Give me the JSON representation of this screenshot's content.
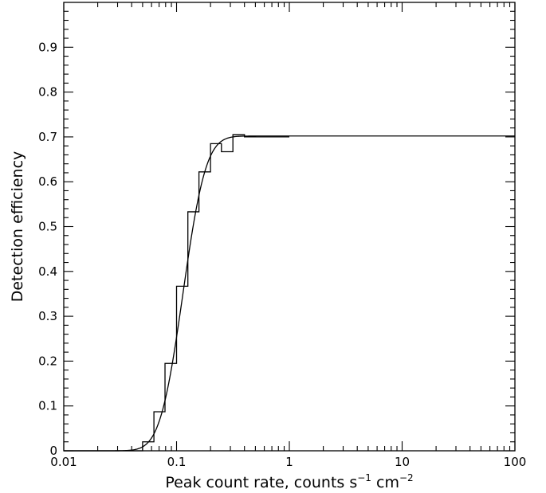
{
  "chart_data": {
    "type": "line",
    "title": "",
    "xlabel": "Peak count rate, counts s",
    "xlabel_sup1": "−1",
    "xlabel_mid": " cm",
    "xlabel_sup2": "−2",
    "ylabel": "Detection efficiency",
    "xscale": "log",
    "xlim": [
      0.01,
      100
    ],
    "ylim": [
      0,
      1
    ],
    "xticks": [
      {
        "value": 0.01,
        "label": "0.01"
      },
      {
        "value": 0.1,
        "label": "0.1"
      },
      {
        "value": 1,
        "label": "1"
      },
      {
        "value": 10,
        "label": "10"
      },
      {
        "value": 100,
        "label": "100"
      }
    ],
    "yticks": [
      {
        "value": 0,
        "label": "0"
      },
      {
        "value": 0.1,
        "label": "0.1"
      },
      {
        "value": 0.2,
        "label": "0.2"
      },
      {
        "value": 0.3,
        "label": "0.3"
      },
      {
        "value": 0.4,
        "label": "0.4"
      },
      {
        "value": 0.5,
        "label": "0.5"
      },
      {
        "value": 0.6,
        "label": "0.6"
      },
      {
        "value": 0.7,
        "label": "0.7"
      },
      {
        "value": 0.8,
        "label": "0.8"
      },
      {
        "value": 0.9,
        "label": "0.9"
      }
    ],
    "grid": false,
    "legend": "none",
    "series": [
      {
        "kind": "step",
        "bins": [
          {
            "x0": 0.01,
            "x1": 0.05,
            "y": 0
          },
          {
            "x0": 0.05,
            "x1": 0.063,
            "y": 0.02
          },
          {
            "x0": 0.063,
            "x1": 0.079,
            "y": 0.087
          },
          {
            "x0": 0.079,
            "x1": 0.1,
            "y": 0.195
          },
          {
            "x0": 0.1,
            "x1": 0.126,
            "y": 0.367
          },
          {
            "x0": 0.126,
            "x1": 0.158,
            "y": 0.533
          },
          {
            "x0": 0.158,
            "x1": 0.2,
            "y": 0.622
          },
          {
            "x0": 0.2,
            "x1": 0.25,
            "y": 0.685
          },
          {
            "x0": 0.25,
            "x1": 0.316,
            "y": 0.667
          },
          {
            "x0": 0.316,
            "x1": 0.4,
            "y": 0.705
          },
          {
            "x0": 0.4,
            "x1": 1.0,
            "y": 0.7
          }
        ]
      },
      {
        "kind": "curve",
        "model": "cumulative lognormal",
        "amplitude": 0.702,
        "median_x": 0.114,
        "log10_sigma": 0.16,
        "x_range": [
          0.01,
          100
        ]
      }
    ]
  }
}
